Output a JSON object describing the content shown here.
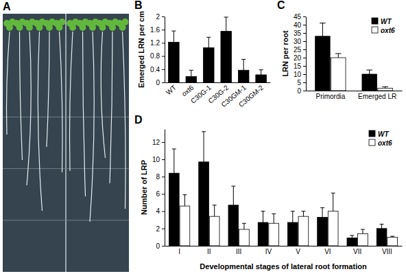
{
  "photo": {
    "panel_label": "A"
  },
  "chart_data": [
    {
      "type": "bar",
      "panel_label": "B",
      "y_label": "Emerged LRN per cm",
      "categories": [
        "WT",
        "oxt6",
        "C30G-1",
        "C30G-2",
        "C30GM-1",
        "C30GM-2"
      ],
      "values": [
        1.22,
        0.18,
        1.05,
        1.55,
        0.37,
        0.23
      ],
      "errors": [
        0.34,
        0.19,
        0.32,
        0.43,
        0.33,
        0.15
      ],
      "color": "#000000",
      "ylim": [
        0,
        2
      ],
      "yticks": [
        0,
        0.4,
        0.8,
        1.2,
        1.6,
        2
      ],
      "grid": false
    },
    {
      "type": "bar",
      "panel_label": "C",
      "y_label": "LRN per root",
      "categories": [
        "Primordia",
        "Emerged LR"
      ],
      "series": [
        {
          "name": "WT",
          "color": "#000000",
          "values": [
            33,
            10
          ],
          "errors": [
            8,
            2.5
          ]
        },
        {
          "name": "oxt6",
          "color": "#ffffff",
          "values": [
            20,
            1.5
          ],
          "errors": [
            2.5,
            0.8
          ]
        }
      ],
      "ylim": [
        0,
        45
      ],
      "yticks": [
        0,
        5,
        10,
        15,
        20,
        25,
        30,
        35,
        40,
        45
      ],
      "legend": "top-right",
      "grid": false
    },
    {
      "type": "bar",
      "panel_label": "D",
      "y_label": "Number of LRP",
      "x_label": "Developmental stages of lateral root formation",
      "categories": [
        "I",
        "II",
        "III",
        "IV",
        "V",
        "VI",
        "VII",
        "VIII"
      ],
      "series": [
        {
          "name": "WT",
          "color": "#000000",
          "values": [
            8.4,
            9.7,
            4.7,
            2.7,
            2.7,
            3.3,
            0.9,
            2.0
          ],
          "errors": [
            2.8,
            3.5,
            2.2,
            1.3,
            1.3,
            1.1,
            0.3,
            0.5
          ]
        },
        {
          "name": "oxt6",
          "color": "#ffffff",
          "values": [
            4.6,
            3.4,
            1.9,
            2.6,
            3.4,
            4.0,
            1.4,
            1.0
          ],
          "errors": [
            1.3,
            1.3,
            0.7,
            1.1,
            0.6,
            2.1,
            0.5,
            0.1
          ]
        }
      ],
      "ylim": [
        0,
        13.5
      ],
      "yticks": [
        0,
        2,
        4,
        6,
        8,
        10,
        12
      ],
      "legend": "top-right",
      "grid": false
    }
  ]
}
